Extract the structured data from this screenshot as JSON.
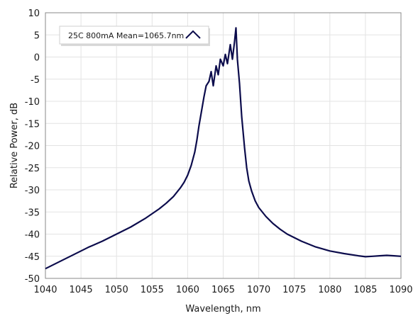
{
  "chart_data": {
    "type": "line",
    "title": "",
    "xlabel": "Wavelength, nm",
    "ylabel": "Relative Power, dB",
    "xlim": [
      1040,
      1090
    ],
    "ylim": [
      -50,
      10
    ],
    "x_ticks": [
      1040,
      1045,
      1050,
      1055,
      1060,
      1065,
      1070,
      1075,
      1080,
      1085,
      1090
    ],
    "y_ticks": [
      10,
      5,
      0,
      -5,
      -10,
      -15,
      -20,
      -25,
      -30,
      -35,
      -40,
      -45,
      -50
    ],
    "grid": true,
    "legend_position": "top-left",
    "series": [
      {
        "name": "25C 800mA Mean=1065.7nm",
        "color": "#0c0c4c",
        "x": [
          1040,
          1042,
          1044,
          1046,
          1048,
          1050,
          1052,
          1054,
          1056,
          1057,
          1058,
          1059,
          1059.5,
          1060,
          1060.5,
          1061,
          1061.3,
          1061.6,
          1062,
          1062.3,
          1062.6,
          1063,
          1063.3,
          1063.6,
          1064,
          1064.3,
          1064.6,
          1065,
          1065.3,
          1065.6,
          1066,
          1066.3,
          1066.6,
          1066.8,
          1067,
          1067.3,
          1067.6,
          1068,
          1068.3,
          1068.6,
          1069,
          1069.5,
          1070,
          1071,
          1072,
          1073,
          1074,
          1075,
          1076,
          1078,
          1080,
          1082,
          1084,
          1085,
          1086,
          1087,
          1088,
          1089,
          1090
        ],
        "y": [
          -47.8,
          -46.2,
          -44.6,
          -43.0,
          -41.6,
          -40.0,
          -38.4,
          -36.5,
          -34.3,
          -33.0,
          -31.5,
          -29.5,
          -28.3,
          -26.7,
          -24.5,
          -21.5,
          -18.8,
          -15.5,
          -11.8,
          -9.0,
          -6.5,
          -5.5,
          -3.3,
          -6.5,
          -2.0,
          -4.0,
          -0.5,
          -2.0,
          0.6,
          -1.5,
          2.8,
          -0.5,
          3.5,
          6.6,
          -0.5,
          -6.0,
          -13.5,
          -20.5,
          -25.0,
          -28.0,
          -30.3,
          -32.5,
          -34.0,
          -36.0,
          -37.6,
          -38.9,
          -40.0,
          -40.8,
          -41.6,
          -42.9,
          -43.8,
          -44.4,
          -44.9,
          -45.1,
          -45.0,
          -44.9,
          -44.8,
          -44.9,
          -45.0
        ]
      }
    ]
  }
}
